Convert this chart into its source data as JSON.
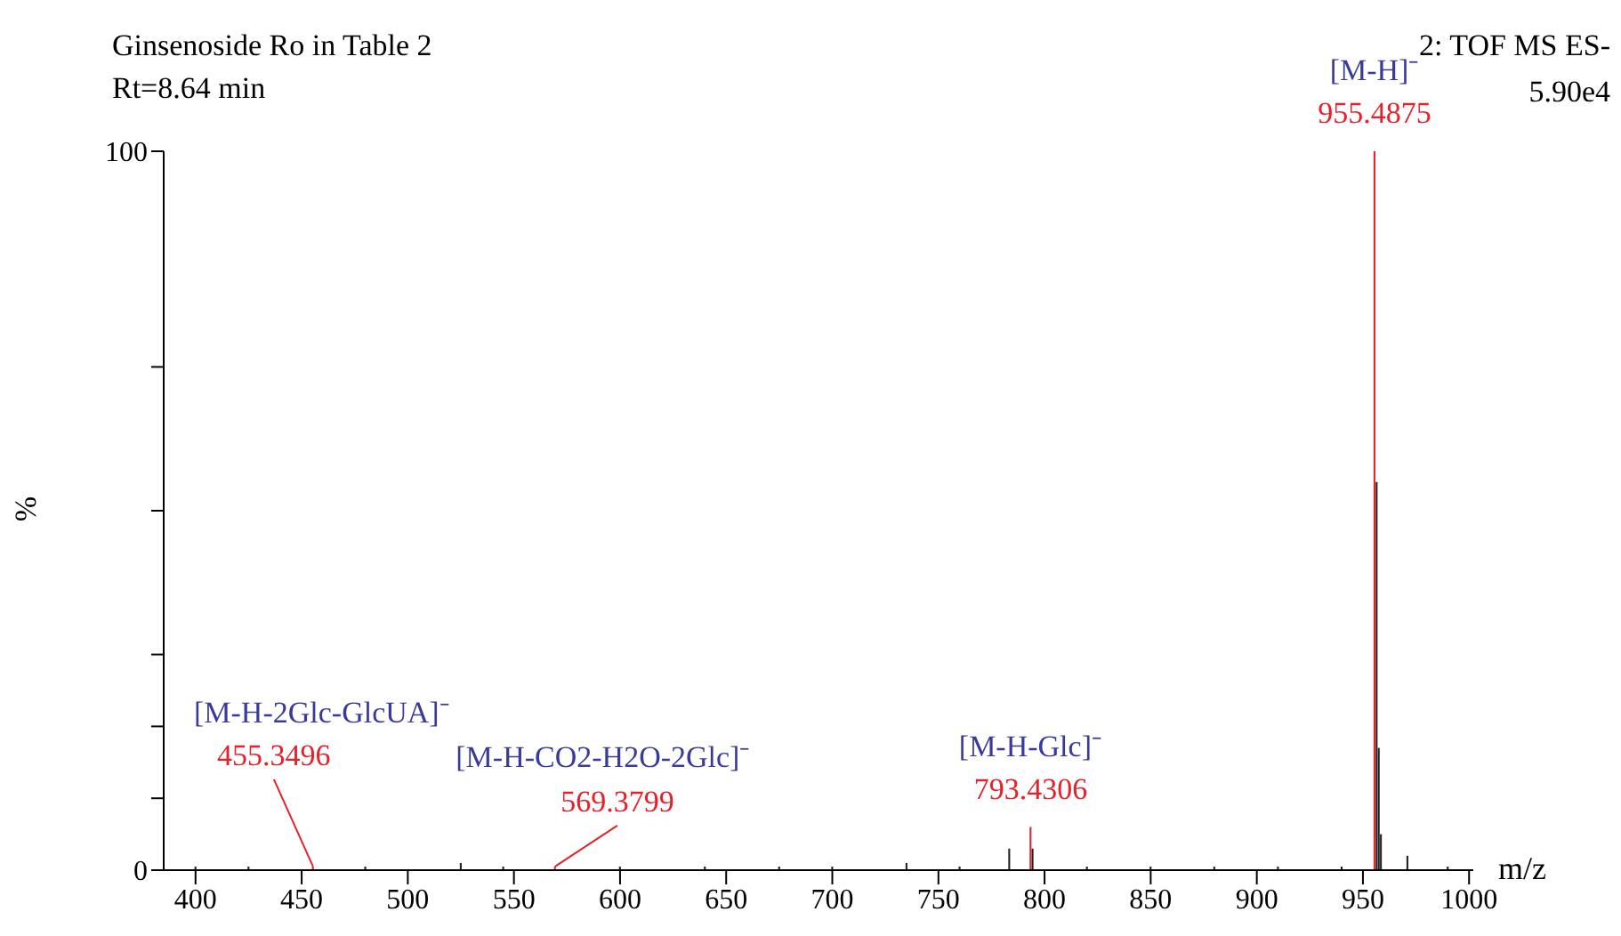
{
  "chart_data": {
    "type": "bar",
    "title": "Ginsenoside Ro in Table 2",
    "subtitle": "Rt=8.64 min",
    "xlabel": "m/z",
    "ylabel": "%",
    "x": [
      400,
      425,
      455.3496,
      480,
      525,
      545,
      569.3799,
      600,
      640,
      675,
      700,
      735,
      760,
      783.4,
      793.4306,
      794.4,
      820,
      850,
      880,
      910,
      940,
      955.4875,
      956.5,
      957.5,
      958.5,
      971,
      990
    ],
    "values": [
      0.5,
      0.5,
      0.5,
      0.5,
      1,
      0.5,
      0.5,
      0.5,
      0.5,
      0.5,
      0.5,
      1,
      0.5,
      3,
      6,
      3,
      0.5,
      0.5,
      0.5,
      0.5,
      0.5,
      100,
      54,
      17,
      5,
      2,
      0.5
    ],
    "colors": [
      "#222222",
      "#222222",
      "#e8202a",
      "#222222",
      "#222222",
      "#222222",
      "#e8202a",
      "#222222",
      "#222222",
      "#222222",
      "#222222",
      "#222222",
      "#222222",
      "#222222",
      "#e8202a",
      "#222222",
      "#222222",
      "#222222",
      "#222222",
      "#222222",
      "#222222",
      "#e8202a",
      "#222222",
      "#222222",
      "#222222",
      "#222222",
      "#222222"
    ],
    "xlim": [
      385,
      1002
    ],
    "xticks": [
      400,
      450,
      500,
      550,
      600,
      650,
      700,
      750,
      800,
      850,
      900,
      950,
      1000
    ],
    "ylim": [
      0,
      100
    ],
    "yticks": [
      0,
      {
        "value": 10,
        "label": null
      },
      {
        "value": 20,
        "label": null
      },
      {
        "value": 30,
        "label": null
      },
      {
        "value": 50,
        "label": null
      },
      {
        "value": 70,
        "label": null
      },
      100
    ],
    "annotations": [
      "2: TOF MS ES-",
      "5.90e4",
      "[M-H-2Glc-GlcUA]⁻",
      "[M-H-CO2-H2O-2Glc]⁻",
      "[M-H-Glc]⁻",
      "[M-H]⁻",
      {
        "text": "455.3496",
        "x": 455.3496,
        "y": 0.5
      },
      {
        "text": "569.3799",
        "x": 569.3799,
        "y": 0.5
      },
      {
        "text": "793.4306",
        "x": 793.4306,
        "y": 6
      },
      {
        "text": "955.4875",
        "x": 955.4875,
        "y": 100
      }
    ]
  }
}
